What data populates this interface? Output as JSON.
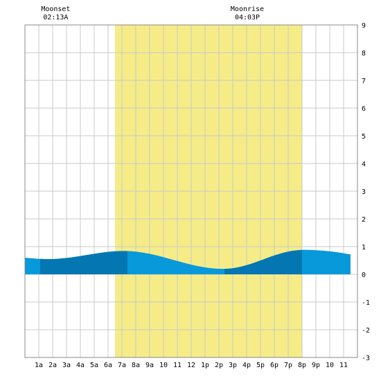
{
  "chart_data": {
    "type": "area",
    "title": "",
    "xlabel": "",
    "ylabel": "",
    "xlim": [
      0,
      24
    ],
    "ylim": [
      -3,
      9
    ],
    "grid": true,
    "x_tick_labels": [
      "1a",
      "2a",
      "3a",
      "4a",
      "5a",
      "6a",
      "7a",
      "8a",
      "9a",
      "10",
      "11",
      "12",
      "1p",
      "2p",
      "3p",
      "4p",
      "5p",
      "6p",
      "7p",
      "8p",
      "9p",
      "10",
      "11"
    ],
    "y_tick_labels": [
      "-3",
      "-2",
      "-1",
      "0",
      "1",
      "2",
      "3",
      "4",
      "5",
      "6",
      "7",
      "8",
      "9"
    ],
    "daylight": {
      "start": 6.5,
      "end": 20.0,
      "color": "#f5ec88"
    },
    "moon_events": [
      {
        "label": "Moonset",
        "time": "02:13A",
        "hour": 2.22
      },
      {
        "label": "Moonrise",
        "time": "04:03P",
        "hour": 16.05
      }
    ],
    "dark_bands": [
      [
        1.1,
        7.4
      ],
      [
        14.4,
        20.0
      ]
    ],
    "colors": {
      "tide_light": "#0799da",
      "tide_dark": "#0477b3",
      "grid": "#c8c8c8"
    },
    "series": [
      {
        "x": [
          0,
          1,
          2,
          3,
          4,
          5,
          6,
          7,
          8,
          9,
          10,
          11,
          12,
          13,
          14,
          15,
          16,
          17,
          18,
          19,
          20,
          21,
          22,
          23,
          23.5
        ],
        "values": [
          0.6,
          0.56,
          0.55,
          0.59,
          0.66,
          0.74,
          0.81,
          0.84,
          0.82,
          0.74,
          0.62,
          0.48,
          0.35,
          0.25,
          0.2,
          0.22,
          0.33,
          0.5,
          0.68,
          0.82,
          0.88,
          0.87,
          0.83,
          0.76,
          0.72
        ]
      }
    ]
  }
}
